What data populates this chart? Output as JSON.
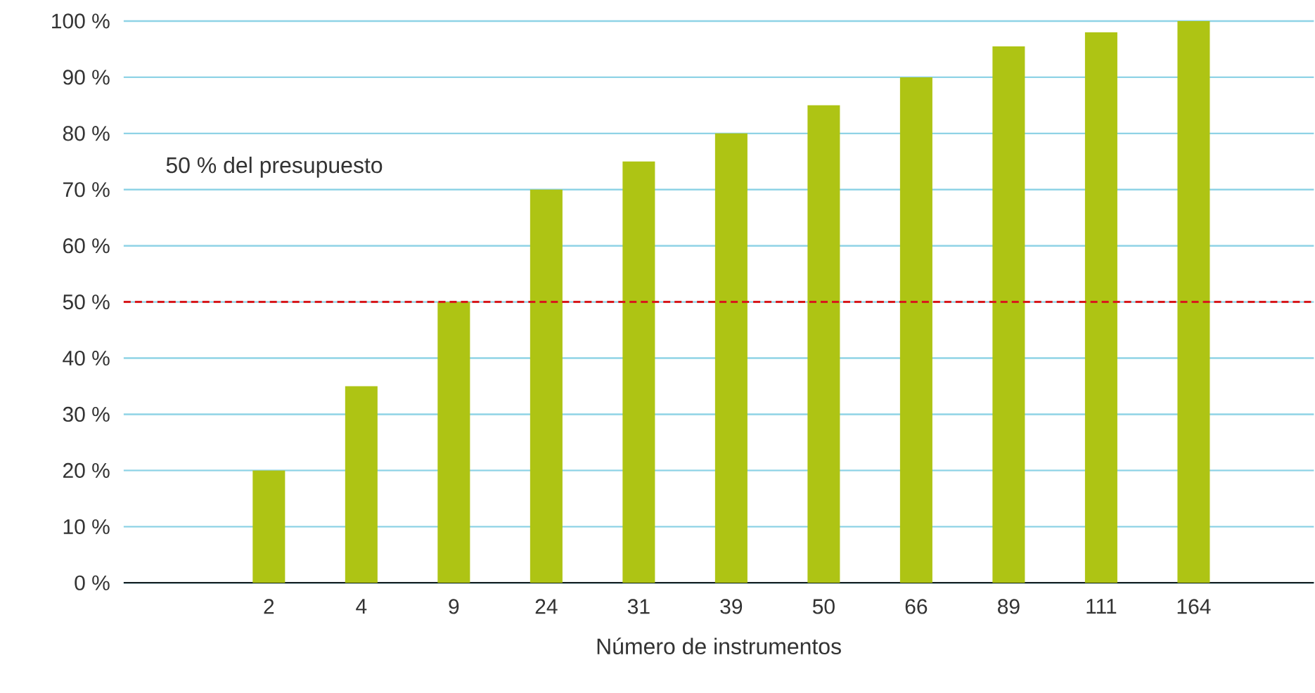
{
  "chart_data": {
    "type": "bar",
    "xlabel": "Número de instrumentos",
    "categories": [
      "2",
      "4",
      "9",
      "24",
      "31",
      "39",
      "50",
      "66",
      "89",
      "111",
      "164"
    ],
    "values": [
      20,
      35,
      50,
      70,
      75,
      80,
      85,
      90,
      95.5,
      98,
      100
    ],
    "color": "#aec414",
    "ylim": [
      0,
      100
    ],
    "yticks": [
      {
        "value": 0,
        "label": "0 %"
      },
      {
        "value": 10,
        "label": "10 %"
      },
      {
        "value": 20,
        "label": "20 %"
      },
      {
        "value": 30,
        "label": "30 %"
      },
      {
        "value": 40,
        "label": "40 %"
      },
      {
        "value": 50,
        "label": "50 %"
      },
      {
        "value": 60,
        "label": "60 %"
      },
      {
        "value": 70,
        "label": "70 %"
      },
      {
        "value": 80,
        "label": "80 %"
      },
      {
        "value": 90,
        "label": "90 %"
      },
      {
        "value": 100,
        "label": "100 %"
      }
    ],
    "grid": "y",
    "annotations": [
      "50 % del presupuesto"
    ],
    "ref_lines": [
      {
        "axis": "y",
        "value": 50,
        "color": "#d7191c",
        "line_style": "dashed"
      }
    ]
  }
}
